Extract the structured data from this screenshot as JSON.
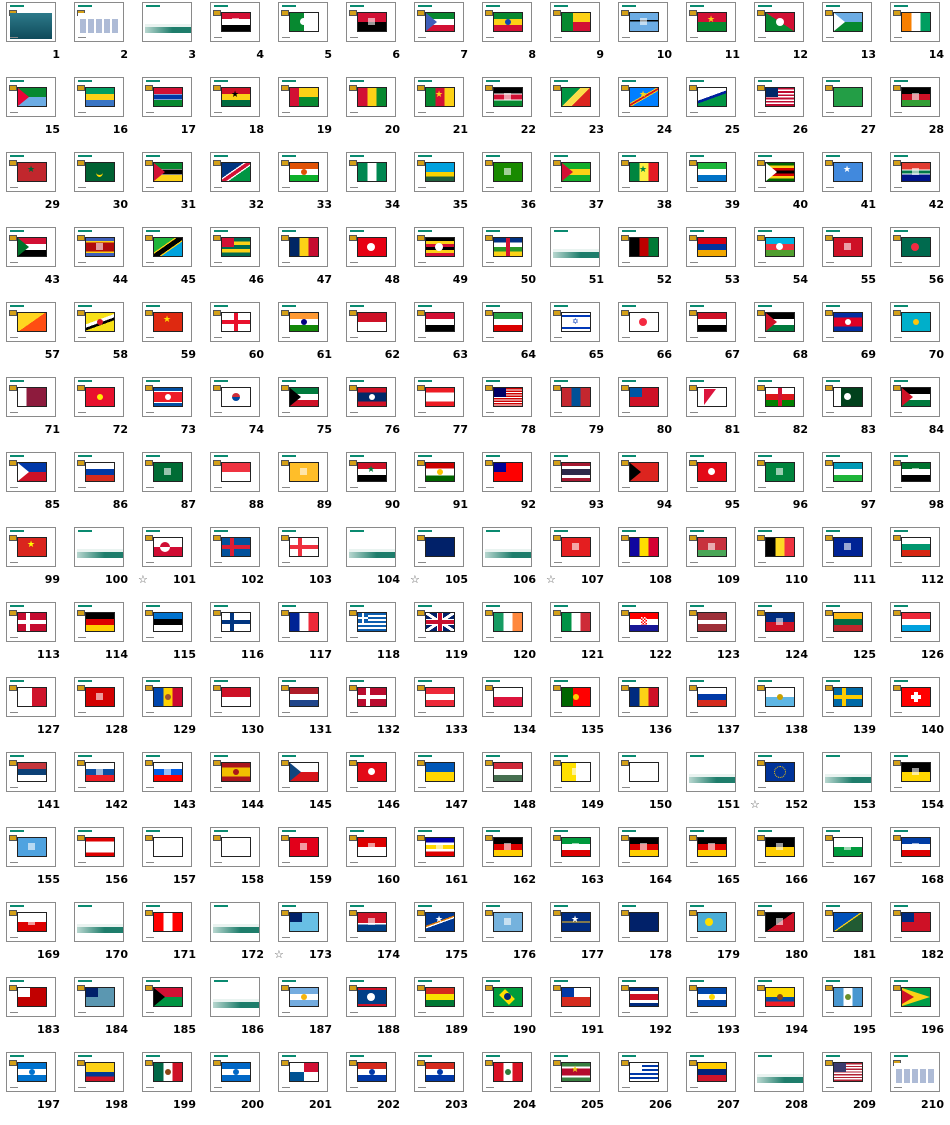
{
  "slide_sorter": {
    "slides": [
      {
        "n": "1",
        "flag": "title"
      },
      {
        "n": "2",
        "flag": "menu"
      },
      {
        "n": "3",
        "flag": "blank"
      },
      {
        "n": "4",
        "flag": "egypt"
      },
      {
        "n": "5",
        "flag": "algeria"
      },
      {
        "n": "6",
        "flag": "angola"
      },
      {
        "n": "7",
        "flag": "eq-guinea"
      },
      {
        "n": "8",
        "flag": "ethiopia"
      },
      {
        "n": "9",
        "flag": "benin"
      },
      {
        "n": "10",
        "flag": "botswana"
      },
      {
        "n": "11",
        "flag": "burkina"
      },
      {
        "n": "12",
        "flag": "burundi"
      },
      {
        "n": "13",
        "flag": "djibouti"
      },
      {
        "n": "14",
        "flag": "ivory"
      },
      {
        "n": "15",
        "flag": "eritrea"
      },
      {
        "n": "16",
        "flag": "gabon"
      },
      {
        "n": "17",
        "flag": "gambia"
      },
      {
        "n": "18",
        "flag": "ghana"
      },
      {
        "n": "19",
        "flag": "guinea-bissau"
      },
      {
        "n": "20",
        "flag": "guinea"
      },
      {
        "n": "21",
        "flag": "cameroon"
      },
      {
        "n": "22",
        "flag": "kenya"
      },
      {
        "n": "23",
        "flag": "congo"
      },
      {
        "n": "24",
        "flag": "drc"
      },
      {
        "n": "25",
        "flag": "lesotho"
      },
      {
        "n": "26",
        "flag": "liberia"
      },
      {
        "n": "27",
        "flag": "libya"
      },
      {
        "n": "28",
        "flag": "malawi"
      },
      {
        "n": "29",
        "flag": "morocco"
      },
      {
        "n": "30",
        "flag": "mauritania"
      },
      {
        "n": "31",
        "flag": "mozambique"
      },
      {
        "n": "32",
        "flag": "namibia"
      },
      {
        "n": "33",
        "flag": "niger"
      },
      {
        "n": "34",
        "flag": "nigeria"
      },
      {
        "n": "35",
        "flag": "rwanda"
      },
      {
        "n": "36",
        "flag": "zambia"
      },
      {
        "n": "37",
        "flag": "sao-tome"
      },
      {
        "n": "38",
        "flag": "senegal"
      },
      {
        "n": "39",
        "flag": "sierra-leone"
      },
      {
        "n": "40",
        "flag": "zimbabwe"
      },
      {
        "n": "41",
        "flag": "somalia"
      },
      {
        "n": "42",
        "flag": "south-africa"
      },
      {
        "n": "43",
        "flag": "sudan"
      },
      {
        "n": "44",
        "flag": "swaziland"
      },
      {
        "n": "45",
        "flag": "tanzania"
      },
      {
        "n": "46",
        "flag": "togo"
      },
      {
        "n": "47",
        "flag": "chad"
      },
      {
        "n": "48",
        "flag": "tunisia"
      },
      {
        "n": "49",
        "flag": "uganda"
      },
      {
        "n": "50",
        "flag": "car"
      },
      {
        "n": "51",
        "flag": "blank"
      },
      {
        "n": "52",
        "flag": "afghanistan"
      },
      {
        "n": "53",
        "flag": "armenia"
      },
      {
        "n": "54",
        "flag": "azerbaijan"
      },
      {
        "n": "55",
        "flag": "bahrain"
      },
      {
        "n": "56",
        "flag": "bangladesh"
      },
      {
        "n": "57",
        "flag": "bhutan"
      },
      {
        "n": "58",
        "flag": "brunei"
      },
      {
        "n": "59",
        "flag": "china"
      },
      {
        "n": "60",
        "flag": "georgia"
      },
      {
        "n": "61",
        "flag": "india"
      },
      {
        "n": "62",
        "flag": "indonesia"
      },
      {
        "n": "63",
        "flag": "iraq"
      },
      {
        "n": "64",
        "flag": "iran"
      },
      {
        "n": "65",
        "flag": "israel"
      },
      {
        "n": "66",
        "flag": "japan"
      },
      {
        "n": "67",
        "flag": "yemen"
      },
      {
        "n": "68",
        "flag": "jordan"
      },
      {
        "n": "69",
        "flag": "cambodia"
      },
      {
        "n": "70",
        "flag": "kazakhstan"
      },
      {
        "n": "71",
        "flag": "qatar"
      },
      {
        "n": "72",
        "flag": "kyrgyzstan"
      },
      {
        "n": "73",
        "flag": "north-korea"
      },
      {
        "n": "74",
        "flag": "south-korea"
      },
      {
        "n": "75",
        "flag": "kuwait"
      },
      {
        "n": "76",
        "flag": "laos"
      },
      {
        "n": "77",
        "flag": "lebanon"
      },
      {
        "n": "78",
        "flag": "malaysia"
      },
      {
        "n": "79",
        "flag": "mongolia"
      },
      {
        "n": "80",
        "flag": "myanmar"
      },
      {
        "n": "81",
        "flag": "nepal"
      },
      {
        "n": "82",
        "flag": "oman"
      },
      {
        "n": "83",
        "flag": "pakistan"
      },
      {
        "n": "84",
        "flag": "palestine"
      },
      {
        "n": "85",
        "flag": "philippines"
      },
      {
        "n": "86",
        "flag": "russia"
      },
      {
        "n": "87",
        "flag": "saudi"
      },
      {
        "n": "88",
        "flag": "singapore"
      },
      {
        "n": "89",
        "flag": "sri-lanka"
      },
      {
        "n": "90",
        "flag": "syria"
      },
      {
        "n": "91",
        "flag": "tajikistan"
      },
      {
        "n": "92",
        "flag": "taiwan"
      },
      {
        "n": "93",
        "flag": "thailand"
      },
      {
        "n": "94",
        "flag": "east-timor"
      },
      {
        "n": "95",
        "flag": "turkey"
      },
      {
        "n": "96",
        "flag": "turkmenistan"
      },
      {
        "n": "97",
        "flag": "uzbekistan"
      },
      {
        "n": "98",
        "flag": "uae"
      },
      {
        "n": "99",
        "flag": "vietnam"
      },
      {
        "n": "100",
        "flag": "blank"
      },
      {
        "n": "101",
        "flag": "greenland",
        "star": true
      },
      {
        "n": "102",
        "flag": "iceland"
      },
      {
        "n": "103",
        "flag": "faroe"
      },
      {
        "n": "104",
        "flag": "blank"
      },
      {
        "n": "105",
        "flag": "australia",
        "star": true
      },
      {
        "n": "106",
        "flag": "blank"
      },
      {
        "n": "107",
        "flag": "albania",
        "star": true
      },
      {
        "n": "108",
        "flag": "andorra"
      },
      {
        "n": "109",
        "flag": "belarus"
      },
      {
        "n": "110",
        "flag": "belgium"
      },
      {
        "n": "111",
        "flag": "bosnia"
      },
      {
        "n": "112",
        "flag": "bulgaria"
      },
      {
        "n": "113",
        "flag": "denmark"
      },
      {
        "n": "114",
        "flag": "germany"
      },
      {
        "n": "115",
        "flag": "estonia"
      },
      {
        "n": "116",
        "flag": "finland"
      },
      {
        "n": "117",
        "flag": "france"
      },
      {
        "n": "118",
        "flag": "greece"
      },
      {
        "n": "119",
        "flag": "uk"
      },
      {
        "n": "120",
        "flag": "ireland"
      },
      {
        "n": "121",
        "flag": "italy"
      },
      {
        "n": "122",
        "flag": "croatia"
      },
      {
        "n": "123",
        "flag": "latvia"
      },
      {
        "n": "124",
        "flag": "liechtenstein"
      },
      {
        "n": "125",
        "flag": "lithuania"
      },
      {
        "n": "126",
        "flag": "luxembourg"
      },
      {
        "n": "127",
        "flag": "malta"
      },
      {
        "n": "128",
        "flag": "macedonia"
      },
      {
        "n": "129",
        "flag": "moldova"
      },
      {
        "n": "130",
        "flag": "monaco"
      },
      {
        "n": "131",
        "flag": "netherlands"
      },
      {
        "n": "132",
        "flag": "norway"
      },
      {
        "n": "133",
        "flag": "austria"
      },
      {
        "n": "134",
        "flag": "poland"
      },
      {
        "n": "135",
        "flag": "portugal"
      },
      {
        "n": "136",
        "flag": "romania"
      },
      {
        "n": "137",
        "flag": "russia"
      },
      {
        "n": "138",
        "flag": "san-marino"
      },
      {
        "n": "139",
        "flag": "sweden"
      },
      {
        "n": "140",
        "flag": "switzerland"
      },
      {
        "n": "141",
        "flag": "serbia"
      },
      {
        "n": "142",
        "flag": "slovakia"
      },
      {
        "n": "143",
        "flag": "slovenia"
      },
      {
        "n": "144",
        "flag": "spain"
      },
      {
        "n": "145",
        "flag": "czech"
      },
      {
        "n": "146",
        "flag": "turkey"
      },
      {
        "n": "147",
        "flag": "ukraine"
      },
      {
        "n": "148",
        "flag": "hungary"
      },
      {
        "n": "149",
        "flag": "vatican"
      },
      {
        "n": "150",
        "flag": "cyprus"
      },
      {
        "n": "151",
        "flag": "blank"
      },
      {
        "n": "152",
        "flag": "eu",
        "star": true
      },
      {
        "n": "153",
        "flag": "blank"
      },
      {
        "n": "154",
        "flag": "baden"
      },
      {
        "n": "155",
        "flag": "bavaria"
      },
      {
        "n": "156",
        "flag": "berlin"
      },
      {
        "n": "157",
        "flag": "brandenburg"
      },
      {
        "n": "158",
        "flag": "bremen"
      },
      {
        "n": "159",
        "flag": "hamburg"
      },
      {
        "n": "160",
        "flag": "hesse"
      },
      {
        "n": "161",
        "flag": "mecklenburg"
      },
      {
        "n": "162",
        "flag": "lower-saxony"
      },
      {
        "n": "163",
        "flag": "nrw"
      },
      {
        "n": "164",
        "flag": "rhineland"
      },
      {
        "n": "165",
        "flag": "saarland"
      },
      {
        "n": "166",
        "flag": "saxony-anhalt"
      },
      {
        "n": "167",
        "flag": "saxony"
      },
      {
        "n": "168",
        "flag": "schleswig"
      },
      {
        "n": "169",
        "flag": "thuringia"
      },
      {
        "n": "170",
        "flag": "blank"
      },
      {
        "n": "171",
        "flag": "canada"
      },
      {
        "n": "172",
        "flag": "blank"
      },
      {
        "n": "173",
        "flag": "fiji",
        "star": true
      },
      {
        "n": "174",
        "flag": "kiribati"
      },
      {
        "n": "175",
        "flag": "marshall"
      },
      {
        "n": "176",
        "flag": "micronesia"
      },
      {
        "n": "177",
        "flag": "nauru"
      },
      {
        "n": "178",
        "flag": "new-zealand"
      },
      {
        "n": "179",
        "flag": "palau"
      },
      {
        "n": "180",
        "flag": "png"
      },
      {
        "n": "181",
        "flag": "solomon"
      },
      {
        "n": "182",
        "flag": "samoa"
      },
      {
        "n": "183",
        "flag": "tonga"
      },
      {
        "n": "184",
        "flag": "tuvalu"
      },
      {
        "n": "185",
        "flag": "vanuatu"
      },
      {
        "n": "186",
        "flag": "blank"
      },
      {
        "n": "187",
        "flag": "argentina"
      },
      {
        "n": "188",
        "flag": "belize"
      },
      {
        "n": "189",
        "flag": "bolivia"
      },
      {
        "n": "190",
        "flag": "brazil"
      },
      {
        "n": "191",
        "flag": "chile"
      },
      {
        "n": "192",
        "flag": "costa-rica"
      },
      {
        "n": "193",
        "flag": "el-salvador"
      },
      {
        "n": "194",
        "flag": "ecuador"
      },
      {
        "n": "195",
        "flag": "guatemala"
      },
      {
        "n": "196",
        "flag": "guyana"
      },
      {
        "n": "197",
        "flag": "honduras"
      },
      {
        "n": "198",
        "flag": "colombia"
      },
      {
        "n": "199",
        "flag": "mexico"
      },
      {
        "n": "200",
        "flag": "nicaragua"
      },
      {
        "n": "201",
        "flag": "panama"
      },
      {
        "n": "202",
        "flag": "paraguay"
      },
      {
        "n": "203",
        "flag": "paraguay"
      },
      {
        "n": "204",
        "flag": "peru"
      },
      {
        "n": "205",
        "flag": "suriname"
      },
      {
        "n": "206",
        "flag": "uruguay"
      },
      {
        "n": "207",
        "flag": "venezuela"
      },
      {
        "n": "208",
        "flag": "blank"
      },
      {
        "n": "209",
        "flag": "usa"
      },
      {
        "n": "210",
        "flag": "end-menu"
      }
    ]
  }
}
